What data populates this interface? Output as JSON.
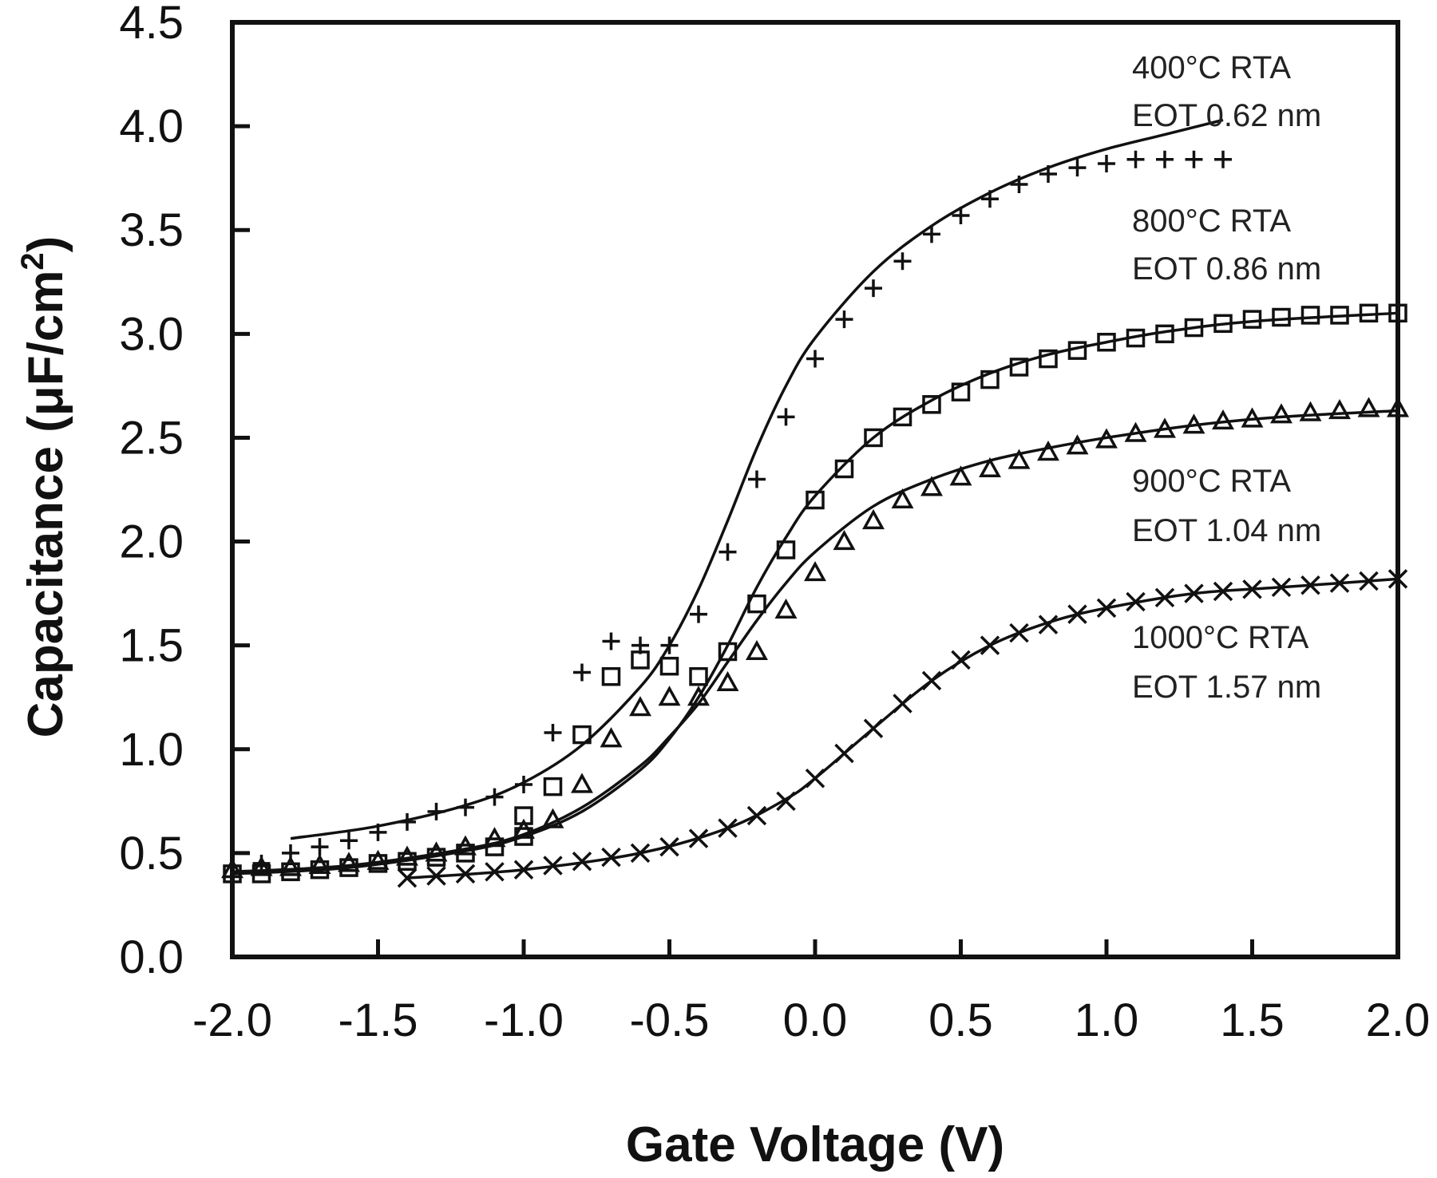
{
  "chart_data": {
    "type": "line",
    "title": "",
    "xlabel": "Gate Voltage (V)",
    "ylabel": "Capacitance (μF/cm²)",
    "xlim": [
      -2.0,
      2.0
    ],
    "ylim": [
      0.0,
      4.5
    ],
    "xticks": [
      "-2.0",
      "-1.5",
      "-1.0",
      "-0.5",
      "0.0",
      "0.5",
      "1.0",
      "1.5",
      "2.0"
    ],
    "yticks": [
      "0.0",
      "0.5",
      "1.0",
      "1.5",
      "2.0",
      "2.5",
      "3.0",
      "3.5",
      "4.0",
      "4.5"
    ],
    "grid": false,
    "legend_position": "inline annotations at right",
    "series": [
      {
        "name": "400°C RTA",
        "annotation": [
          "400°C RTA",
          "EOT 0.62 nm"
        ],
        "marker": "plus",
        "points": [
          [
            -1.9,
            0.45
          ],
          [
            -1.8,
            0.5
          ],
          [
            -1.7,
            0.53
          ],
          [
            -1.6,
            0.56
          ],
          [
            -1.5,
            0.6
          ],
          [
            -1.4,
            0.65
          ],
          [
            -1.3,
            0.7
          ],
          [
            -1.2,
            0.72
          ],
          [
            -1.1,
            0.77
          ],
          [
            -1.0,
            0.83
          ],
          [
            -0.9,
            1.08
          ],
          [
            -0.8,
            1.37
          ],
          [
            -0.7,
            1.52
          ],
          [
            -0.6,
            1.5
          ],
          [
            -0.5,
            1.5
          ],
          [
            -0.4,
            1.65
          ],
          [
            -0.3,
            1.95
          ],
          [
            -0.2,
            2.3
          ],
          [
            -0.1,
            2.6
          ],
          [
            0.0,
            2.88
          ],
          [
            0.1,
            3.07
          ],
          [
            0.2,
            3.22
          ],
          [
            0.3,
            3.35
          ],
          [
            0.4,
            3.48
          ],
          [
            0.5,
            3.57
          ],
          [
            0.6,
            3.65
          ],
          [
            0.7,
            3.72
          ],
          [
            0.8,
            3.77
          ],
          [
            0.9,
            3.8
          ],
          [
            1.0,
            3.82
          ],
          [
            1.1,
            3.84
          ],
          [
            1.2,
            3.84
          ],
          [
            1.3,
            3.84
          ],
          [
            1.4,
            3.84
          ]
        ],
        "fit": [
          [
            -1.8,
            0.57
          ],
          [
            -1.5,
            0.63
          ],
          [
            -1.2,
            0.73
          ],
          [
            -1.0,
            0.84
          ],
          [
            -0.8,
            1.02
          ],
          [
            -0.6,
            1.3
          ],
          [
            -0.5,
            1.5
          ],
          [
            -0.4,
            1.77
          ],
          [
            -0.3,
            2.1
          ],
          [
            -0.2,
            2.45
          ],
          [
            -0.1,
            2.75
          ],
          [
            0.0,
            2.98
          ],
          [
            0.2,
            3.3
          ],
          [
            0.4,
            3.52
          ],
          [
            0.6,
            3.68
          ],
          [
            0.8,
            3.8
          ],
          [
            1.0,
            3.89
          ],
          [
            1.2,
            3.96
          ],
          [
            1.4,
            4.03
          ]
        ]
      },
      {
        "name": "800°C RTA",
        "annotation": [
          "800°C RTA",
          "EOT 0.86 nm"
        ],
        "marker": "square",
        "points": [
          [
            -2.0,
            0.4
          ],
          [
            -1.9,
            0.4
          ],
          [
            -1.8,
            0.41
          ],
          [
            -1.7,
            0.42
          ],
          [
            -1.6,
            0.43
          ],
          [
            -1.5,
            0.45
          ],
          [
            -1.4,
            0.46
          ],
          [
            -1.3,
            0.48
          ],
          [
            -1.2,
            0.5
          ],
          [
            -1.1,
            0.53
          ],
          [
            -1.0,
            0.58
          ],
          [
            -1.0,
            0.68
          ],
          [
            -0.9,
            0.82
          ],
          [
            -0.8,
            1.07
          ],
          [
            -0.7,
            1.35
          ],
          [
            -0.6,
            1.43
          ],
          [
            -0.5,
            1.4
          ],
          [
            -0.4,
            1.35
          ],
          [
            -0.3,
            1.47
          ],
          [
            -0.2,
            1.7
          ],
          [
            -0.1,
            1.96
          ],
          [
            0.0,
            2.2
          ],
          [
            0.1,
            2.35
          ],
          [
            0.2,
            2.5
          ],
          [
            0.3,
            2.6
          ],
          [
            0.4,
            2.66
          ],
          [
            0.5,
            2.72
          ],
          [
            0.6,
            2.78
          ],
          [
            0.7,
            2.84
          ],
          [
            0.8,
            2.88
          ],
          [
            0.9,
            2.92
          ],
          [
            1.0,
            2.96
          ],
          [
            1.1,
            2.98
          ],
          [
            1.2,
            3.0
          ],
          [
            1.3,
            3.03
          ],
          [
            1.4,
            3.05
          ],
          [
            1.5,
            3.07
          ],
          [
            1.6,
            3.08
          ],
          [
            1.7,
            3.09
          ],
          [
            1.8,
            3.09
          ],
          [
            1.9,
            3.1
          ],
          [
            2.0,
            3.1
          ]
        ],
        "fit": [
          [
            -2.0,
            0.4
          ],
          [
            -1.6,
            0.43
          ],
          [
            -1.2,
            0.51
          ],
          [
            -1.0,
            0.58
          ],
          [
            -0.8,
            0.7
          ],
          [
            -0.6,
            0.9
          ],
          [
            -0.5,
            1.05
          ],
          [
            -0.4,
            1.25
          ],
          [
            -0.3,
            1.5
          ],
          [
            -0.2,
            1.78
          ],
          [
            -0.1,
            2.02
          ],
          [
            0.0,
            2.22
          ],
          [
            0.2,
            2.5
          ],
          [
            0.4,
            2.68
          ],
          [
            0.6,
            2.81
          ],
          [
            0.8,
            2.9
          ],
          [
            1.0,
            2.96
          ],
          [
            1.2,
            3.01
          ],
          [
            1.5,
            3.06
          ],
          [
            2.0,
            3.1
          ]
        ]
      },
      {
        "name": "900°C RTA",
        "annotation": [
          "900°C RTA",
          "EOT 1.04 nm"
        ],
        "marker": "triangle",
        "points": [
          [
            -2.0,
            0.42
          ],
          [
            -1.9,
            0.43
          ],
          [
            -1.8,
            0.43
          ],
          [
            -1.7,
            0.44
          ],
          [
            -1.6,
            0.45
          ],
          [
            -1.5,
            0.46
          ],
          [
            -1.4,
            0.48
          ],
          [
            -1.3,
            0.5
          ],
          [
            -1.2,
            0.53
          ],
          [
            -1.1,
            0.57
          ],
          [
            -1.0,
            0.61
          ],
          [
            -0.9,
            0.66
          ],
          [
            -0.8,
            0.83
          ],
          [
            -0.7,
            1.05
          ],
          [
            -0.6,
            1.2
          ],
          [
            -0.5,
            1.25
          ],
          [
            -0.4,
            1.25
          ],
          [
            -0.3,
            1.32
          ],
          [
            -0.2,
            1.47
          ],
          [
            -0.1,
            1.67
          ],
          [
            0.0,
            1.85
          ],
          [
            0.1,
            2.0
          ],
          [
            0.2,
            2.1
          ],
          [
            0.3,
            2.2
          ],
          [
            0.4,
            2.26
          ],
          [
            0.5,
            2.31
          ],
          [
            0.6,
            2.35
          ],
          [
            0.7,
            2.39
          ],
          [
            0.8,
            2.43
          ],
          [
            0.9,
            2.46
          ],
          [
            1.0,
            2.49
          ],
          [
            1.1,
            2.52
          ],
          [
            1.2,
            2.54
          ],
          [
            1.3,
            2.56
          ],
          [
            1.4,
            2.58
          ],
          [
            1.5,
            2.59
          ],
          [
            1.6,
            2.61
          ],
          [
            1.7,
            2.62
          ],
          [
            1.8,
            2.63
          ],
          [
            1.9,
            2.64
          ],
          [
            2.0,
            2.64
          ]
        ],
        "fit": [
          [
            -2.0,
            0.41
          ],
          [
            -1.6,
            0.44
          ],
          [
            -1.2,
            0.52
          ],
          [
            -1.0,
            0.59
          ],
          [
            -0.8,
            0.72
          ],
          [
            -0.6,
            0.92
          ],
          [
            -0.5,
            1.06
          ],
          [
            -0.4,
            1.22
          ],
          [
            -0.3,
            1.42
          ],
          [
            -0.2,
            1.62
          ],
          [
            -0.1,
            1.8
          ],
          [
            0.0,
            1.95
          ],
          [
            0.2,
            2.17
          ],
          [
            0.4,
            2.3
          ],
          [
            0.6,
            2.39
          ],
          [
            0.8,
            2.45
          ],
          [
            1.0,
            2.5
          ],
          [
            1.3,
            2.56
          ],
          [
            1.6,
            2.6
          ],
          [
            2.0,
            2.63
          ]
        ]
      },
      {
        "name": "1000°C RTA",
        "annotation": [
          "1000°C RTA",
          "EOT 1.57 nm"
        ],
        "marker": "x",
        "points": [
          [
            -1.4,
            0.38
          ],
          [
            -1.3,
            0.39
          ],
          [
            -1.2,
            0.4
          ],
          [
            -1.1,
            0.41
          ],
          [
            -1.0,
            0.42
          ],
          [
            -0.9,
            0.44
          ],
          [
            -0.8,
            0.46
          ],
          [
            -0.7,
            0.48
          ],
          [
            -0.6,
            0.5
          ],
          [
            -0.5,
            0.53
          ],
          [
            -0.4,
            0.57
          ],
          [
            -0.3,
            0.62
          ],
          [
            -0.2,
            0.68
          ],
          [
            -0.1,
            0.75
          ],
          [
            0.0,
            0.86
          ],
          [
            0.1,
            0.98
          ],
          [
            0.2,
            1.1
          ],
          [
            0.3,
            1.22
          ],
          [
            0.4,
            1.33
          ],
          [
            0.5,
            1.43
          ],
          [
            0.6,
            1.5
          ],
          [
            0.7,
            1.56
          ],
          [
            0.8,
            1.6
          ],
          [
            0.9,
            1.65
          ],
          [
            1.0,
            1.68
          ],
          [
            1.1,
            1.71
          ],
          [
            1.2,
            1.73
          ],
          [
            1.3,
            1.75
          ],
          [
            1.4,
            1.76
          ],
          [
            1.5,
            1.77
          ],
          [
            1.6,
            1.78
          ],
          [
            1.7,
            1.79
          ],
          [
            1.8,
            1.8
          ],
          [
            1.9,
            1.81
          ],
          [
            2.0,
            1.82
          ]
        ],
        "fit": [
          [
            -1.4,
            0.38
          ],
          [
            -1.0,
            0.42
          ],
          [
            -0.6,
            0.5
          ],
          [
            -0.3,
            0.62
          ],
          [
            -0.1,
            0.76
          ],
          [
            0.0,
            0.86
          ],
          [
            0.2,
            1.1
          ],
          [
            0.4,
            1.33
          ],
          [
            0.6,
            1.5
          ],
          [
            0.8,
            1.61
          ],
          [
            1.0,
            1.68
          ],
          [
            1.3,
            1.75
          ],
          [
            1.6,
            1.78
          ],
          [
            2.0,
            1.82
          ]
        ]
      }
    ]
  },
  "axes": {
    "xlabel": "Gate Voltage (V)",
    "ylabel_main": "Capacitance (μF/cm",
    "ylabel_sup": "2",
    "ylabel_close": ")"
  },
  "annotations": [
    {
      "line1": "400°C RTA",
      "line2": "EOT 0.62 nm"
    },
    {
      "line1": "800°C RTA",
      "line2": "EOT 0.86 nm"
    },
    {
      "line1": "900°C RTA",
      "line2": "EOT 1.04 nm"
    },
    {
      "line1": "1000°C RTA",
      "line2": "EOT 1.57 nm"
    }
  ],
  "style": {
    "ink": "#111111",
    "background": "#ffffff"
  }
}
